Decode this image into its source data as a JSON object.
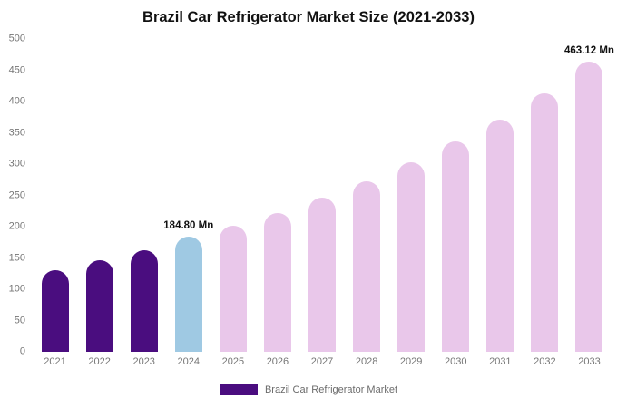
{
  "title": "Brazil Car Refrigerator Market Size (2021-2033)",
  "legend": {
    "label": "Brazil Car Refrigerator Market",
    "swatch_color": "#4a0d7f"
  },
  "colors": {
    "historical_bar": "#4a0d7f",
    "current_year_bar": "#9fc9e3",
    "forecast_bar": "#e9c7ea",
    "tick_text": "#757575",
    "title_text": "#111111"
  },
  "chart_data": {
    "type": "bar",
    "title": "Brazil Car Refrigerator Market Size (2021-2033)",
    "xlabel": "",
    "ylabel": "",
    "categories": [
      "2021",
      "2022",
      "2023",
      "2024",
      "2025",
      "2026",
      "2027",
      "2028",
      "2029",
      "2030",
      "2031",
      "2032",
      "2033"
    ],
    "values": [
      130,
      146,
      163,
      184.8,
      201,
      222,
      247,
      273,
      303,
      336,
      371,
      413,
      463.12
    ],
    "bar_colors": [
      "#4a0d7f",
      "#4a0d7f",
      "#4a0d7f",
      "#9fc9e3",
      "#e9c7ea",
      "#e9c7ea",
      "#e9c7ea",
      "#e9c7ea",
      "#e9c7ea",
      "#e9c7ea",
      "#e9c7ea",
      "#e9c7ea",
      "#e9c7ea"
    ],
    "data_labels": [
      {
        "index": 3,
        "text": "184.80 Mn"
      },
      {
        "index": 12,
        "text": "463.12 Mn"
      }
    ],
    "ylim": [
      0,
      500
    ],
    "yticks": [
      0,
      50,
      100,
      150,
      200,
      250,
      300,
      350,
      400,
      450,
      500
    ],
    "grid": false,
    "legend_position": "bottom",
    "series_name": "Brazil Car Refrigerator Market"
  }
}
